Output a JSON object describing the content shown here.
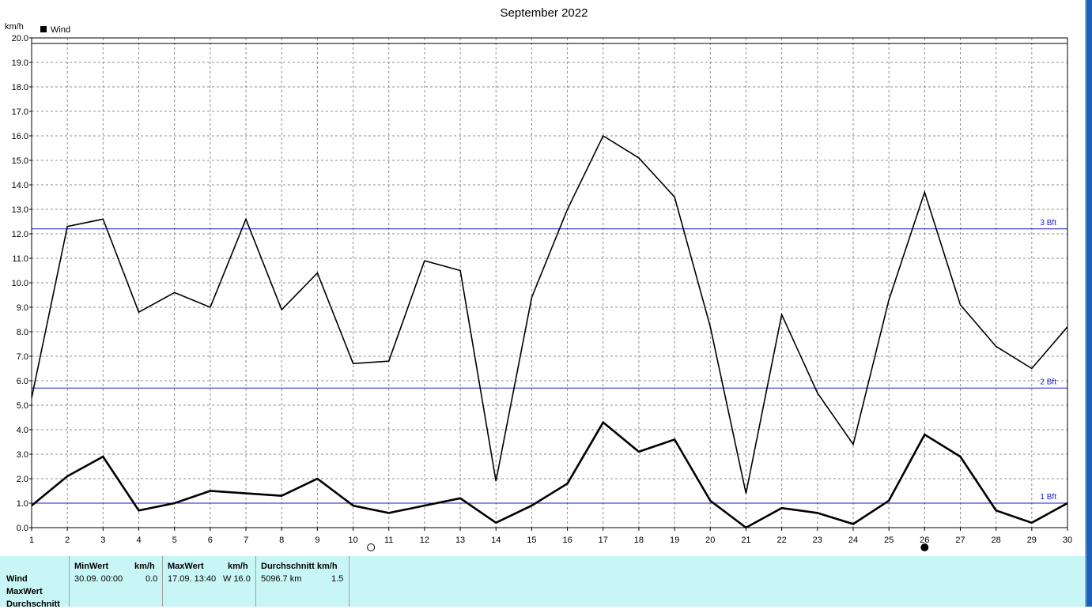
{
  "title": "September 2022",
  "y_unit": "km/h",
  "legend": {
    "label": "Wind"
  },
  "reference_lines": [
    {
      "label": "3 Bft",
      "value": 12.2
    },
    {
      "label": "2 Bft",
      "value": 5.7
    },
    {
      "label": "1 Bft",
      "value": 1.0
    }
  ],
  "moon_phases": [
    {
      "day": 10.5,
      "type": "full"
    },
    {
      "day": 26,
      "type": "new"
    }
  ],
  "chart_data": {
    "type": "line",
    "x": [
      1,
      2,
      3,
      4,
      5,
      6,
      7,
      8,
      9,
      10,
      11,
      12,
      13,
      14,
      15,
      16,
      17,
      18,
      19,
      20,
      21,
      22,
      23,
      24,
      25,
      26,
      27,
      28,
      29,
      30
    ],
    "series": [
      {
        "name": "MaxWert",
        "values": [
          5.3,
          12.3,
          12.6,
          8.8,
          9.6,
          9.0,
          12.6,
          8.9,
          10.4,
          6.7,
          6.8,
          10.9,
          10.5,
          1.9,
          9.4,
          13.0,
          16.0,
          15.1,
          13.5,
          8.2,
          1.4,
          8.7,
          5.5,
          3.4,
          9.3,
          13.7,
          9.1,
          7.4,
          6.5,
          8.2
        ]
      },
      {
        "name": "Durchschnitt",
        "values": [
          0.9,
          2.1,
          2.9,
          0.7,
          1.0,
          1.5,
          1.4,
          1.3,
          2.0,
          0.9,
          0.6,
          0.9,
          1.2,
          0.2,
          0.9,
          1.8,
          4.3,
          3.1,
          3.6,
          1.1,
          0.0,
          0.8,
          0.6,
          0.15,
          1.1,
          3.8,
          2.9,
          0.7,
          0.2,
          1.0
        ]
      }
    ],
    "xlim": [
      1,
      30
    ],
    "ylim": [
      0,
      20
    ],
    "y_ticks": [
      "0.0",
      "1.0",
      "2.0",
      "3.0",
      "4.0",
      "5.0",
      "6.0",
      "7.0",
      "8.0",
      "9.0",
      "10.0",
      "11.0",
      "12.0",
      "13.0",
      "14.0",
      "15.0",
      "16.0",
      "17.0",
      "18.0",
      "19.0",
      "20.0"
    ],
    "x_ticks": [
      "1",
      "2",
      "3",
      "4",
      "5",
      "6",
      "7",
      "8",
      "9",
      "10",
      "11",
      "12",
      "13",
      "14",
      "15",
      "16",
      "17",
      "18",
      "19",
      "20",
      "21",
      "22",
      "23",
      "24",
      "25",
      "26",
      "27",
      "28",
      "29",
      "30"
    ],
    "grid": true
  },
  "table": {
    "row_labels": [
      "Wind",
      "MaxWert",
      "Durchschnitt"
    ],
    "min": {
      "header": "MinWert",
      "unit": "km/h",
      "date": "30.09.  00:00",
      "value": "0.0"
    },
    "max": {
      "header": "MaxWert",
      "unit": "km/h",
      "date": "17.09.  13:40",
      "value": "W 16.0"
    },
    "avg": {
      "header": "Durchschnitt km/h",
      "distance": "5096.7 km",
      "value": "1.5"
    }
  },
  "colors": {
    "background": "#ffffff",
    "series": "#000000",
    "reference": "#1a1acc",
    "grid": "#8c8c8c",
    "panel": "#c8f6f6"
  }
}
